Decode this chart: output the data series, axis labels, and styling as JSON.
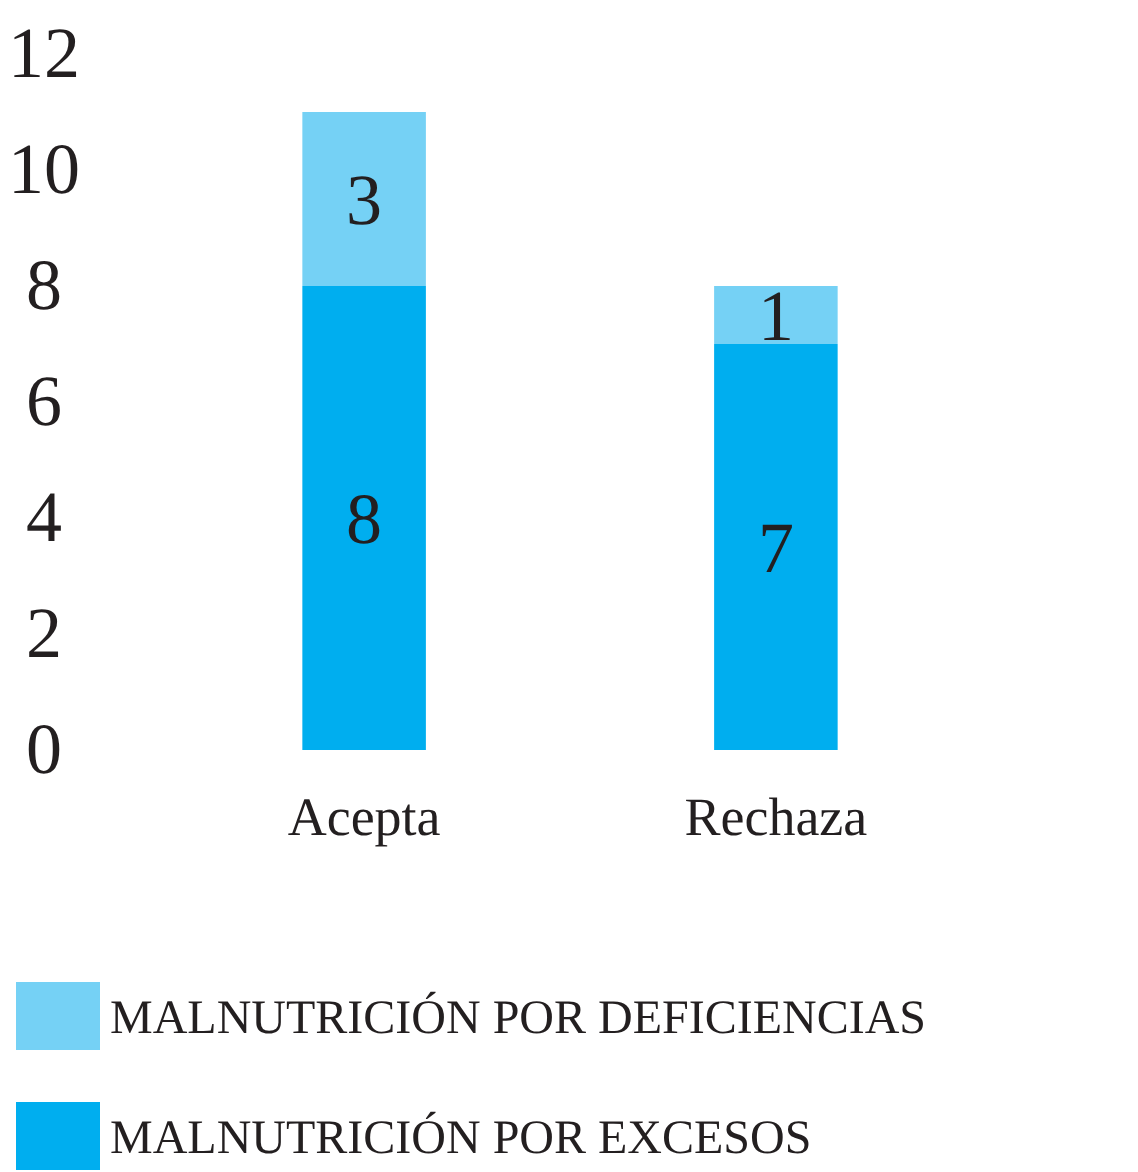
{
  "chart_data": {
    "type": "bar",
    "stacked": true,
    "categories": [
      "Acepta",
      "Rechaza"
    ],
    "series": [
      {
        "name": "MALNUTRICIÓN POR EXCESOS",
        "color": "#00aeef",
        "values": [
          8,
          7
        ]
      },
      {
        "name": "MALNUTRICIÓN POR DEFICIENCIAS",
        "color": "#75d1f5",
        "values": [
          3,
          1
        ]
      }
    ],
    "ylim": [
      0,
      12
    ],
    "yticks": [
      0,
      2,
      4,
      6,
      8,
      10,
      12
    ],
    "data_labels": true,
    "legend": "bottom",
    "grid": false
  }
}
